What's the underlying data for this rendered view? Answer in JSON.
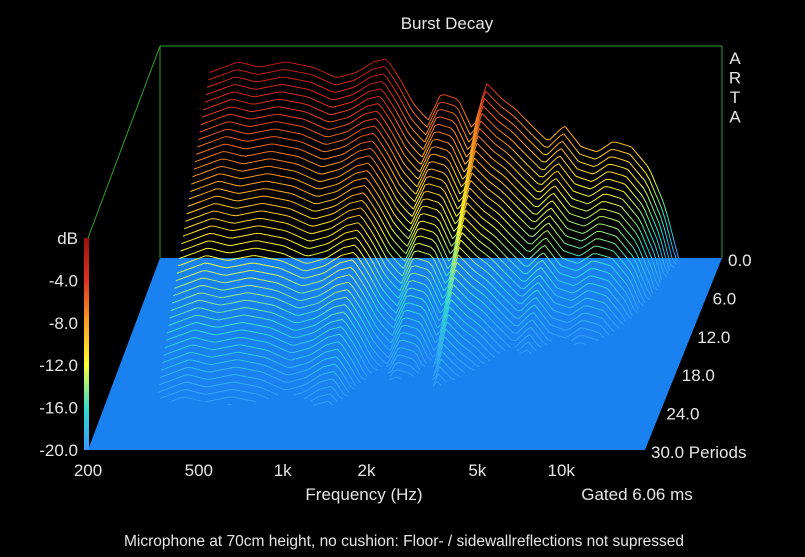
{
  "chart_data": {
    "type": "waterfall-3d",
    "title": "Burst Decay",
    "brand": [
      "A",
      "R",
      "T",
      "A"
    ],
    "x_axis": {
      "label": "Frequency (Hz)",
      "scale": "log",
      "range": [
        200,
        20000
      ],
      "ticks": [
        {
          "value": 200,
          "label": "200"
        },
        {
          "value": 500,
          "label": "500"
        },
        {
          "value": 1000,
          "label": "1k"
        },
        {
          "value": 2000,
          "label": "2k"
        },
        {
          "value": 5000,
          "label": "5k"
        },
        {
          "value": 10000,
          "label": "10k"
        }
      ]
    },
    "z_axis": {
      "label": "Periods",
      "range": [
        0,
        30
      ],
      "ticks": [
        {
          "value": 0,
          "label": "0.0"
        },
        {
          "value": 6,
          "label": "6.0"
        },
        {
          "value": 12,
          "label": "12.0"
        },
        {
          "value": 18,
          "label": "18.0"
        },
        {
          "value": 24,
          "label": "24.0"
        },
        {
          "value": 30,
          "label": "30.0 Periods"
        }
      ]
    },
    "y_axis": {
      "label": "dB",
      "range": [
        -20,
        0
      ],
      "ticks": [
        {
          "value": -4,
          "label": "-4.0"
        },
        {
          "value": -8,
          "label": "-8.0"
        },
        {
          "value": -12,
          "label": "-12.0"
        },
        {
          "value": -16,
          "label": "-16.0"
        },
        {
          "value": -20,
          "label": "-20.0"
        }
      ]
    },
    "colorscale": [
      {
        "value": -20,
        "color": "#3399ff"
      },
      {
        "value": -16,
        "color": "#33ddcc"
      },
      {
        "value": -12,
        "color": "#ffff33"
      },
      {
        "value": -8,
        "color": "#ffa020"
      },
      {
        "value": -4,
        "color": "#e03020"
      },
      {
        "value": 0,
        "color": "#9b1010"
      }
    ],
    "initial_response": {
      "frequency_hz": [
        300,
        380,
        450,
        560,
        700,
        850,
        1000,
        1150,
        1280,
        1420,
        1600,
        1800,
        2000,
        2300,
        2600,
        2900,
        3300,
        3700,
        4200,
        4800,
        5500,
        6300,
        7200,
        8200,
        9500,
        11000,
        12500,
        14000
      ],
      "level_db": [
        -2.5,
        -1.5,
        -2.0,
        -1.5,
        -2.0,
        -3.0,
        -2.5,
        -1.5,
        -1.2,
        -3.0,
        -5.5,
        -7.0,
        -4.5,
        -5.0,
        -8.0,
        -3.5,
        -5.0,
        -6.0,
        -7.5,
        -9.0,
        -7.5,
        -9.5,
        -10.0,
        -9.0,
        -9.5,
        -11.5,
        -15.0,
        -20.0
      ]
    },
    "decay_rate_db_per_period": 0.8,
    "gate": "Gated 6.06 ms",
    "footnote": "Microphone at 70cm height, no cushion: Floor- / sidewallreflections not supressed"
  },
  "colors": {
    "background": "#000000",
    "floor": "#1a82f0",
    "frame": "#2e9e2e",
    "text": "#e6e6e6"
  }
}
